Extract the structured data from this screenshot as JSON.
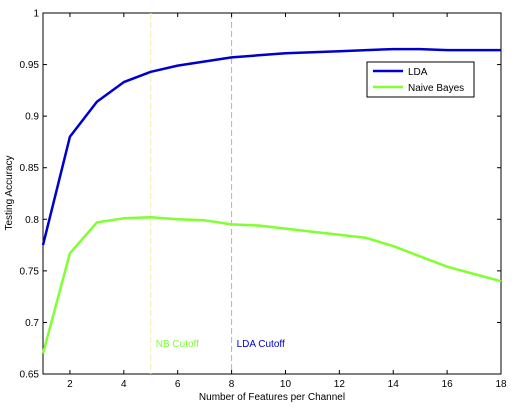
{
  "chart_data": {
    "type": "line",
    "title": "",
    "xlabel": "Number of Features per Channel",
    "ylabel": "Testing Accuracy",
    "xlim": [
      1,
      18
    ],
    "ylim": [
      0.65,
      1
    ],
    "xticks": [
      2,
      4,
      6,
      8,
      10,
      12,
      14,
      16,
      18
    ],
    "xtick_labels": [
      "2",
      "4",
      "6",
      "8",
      "10",
      "12",
      "14",
      "16",
      "18"
    ],
    "yticks": [
      0.65,
      0.7,
      0.75,
      0.8,
      0.85,
      0.9,
      0.95,
      1
    ],
    "ytick_labels": [
      "0.65",
      "0.7",
      "0.75",
      "0.8",
      "0.85",
      "0.9",
      "0.95",
      "1"
    ],
    "grid": false,
    "legend_position": "top-right",
    "x": [
      1,
      2,
      3,
      4,
      5,
      6,
      7,
      8,
      9,
      10,
      11,
      12,
      13,
      14,
      15,
      16,
      17,
      18
    ],
    "series": [
      {
        "name": "LDA",
        "color": "#0000cc",
        "values": [
          0.775,
          0.88,
          0.914,
          0.933,
          0.943,
          0.949,
          0.953,
          0.957,
          0.959,
          0.961,
          0.962,
          0.963,
          0.964,
          0.965,
          0.965,
          0.964,
          0.964,
          0.964
        ]
      },
      {
        "name": "Naive Bayes",
        "color": "#80ff33",
        "values": [
          0.67,
          0.767,
          0.797,
          0.801,
          0.802,
          0.8,
          0.799,
          0.795,
          0.794,
          0.791,
          0.788,
          0.785,
          0.782,
          0.774,
          0.764,
          0.754,
          0.747,
          0.74
        ]
      }
    ],
    "cutoffs": [
      {
        "label": "NB Cutoff",
        "x": 5,
        "color": "#80ff33",
        "line_color": "#f2eeaa"
      },
      {
        "label": "LDA Cutoff",
        "x": 8,
        "color": "#0000cc",
        "line_color": "#b0b0cc"
      }
    ]
  }
}
